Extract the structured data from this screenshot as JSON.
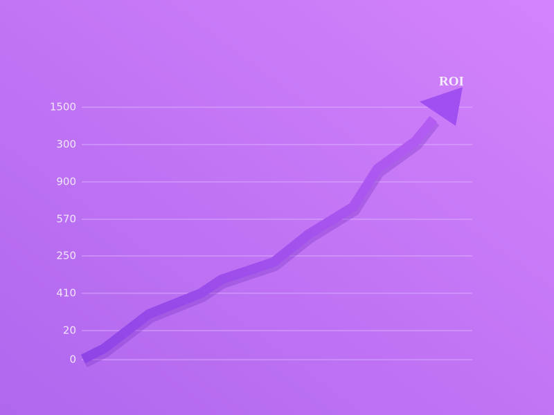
{
  "label": "ROI",
  "axis_labels": [
    "1500",
    "300",
    "900",
    "570",
    "250",
    "410",
    "20",
    "0"
  ]
}
